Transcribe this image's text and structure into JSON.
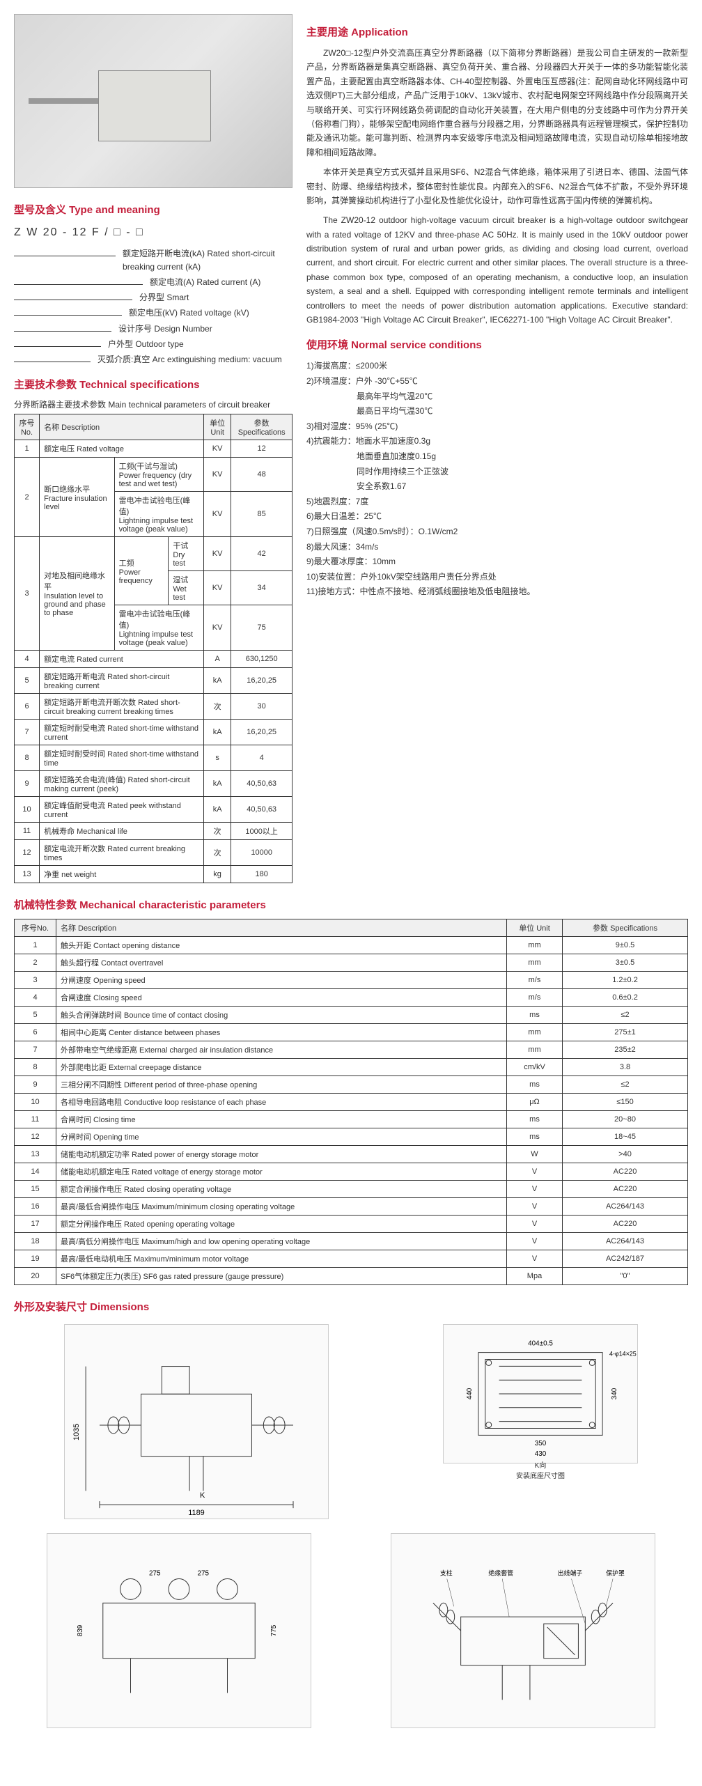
{
  "sections": {
    "type_meaning": "型号及含义 Type and meaning",
    "tech_specs": "主要技术参数  Technical specifications",
    "application": "主要用途  Application",
    "service_conditions": "使用环境  Normal service conditions",
    "mech_params": "机械特性参数  Mechanical characteristic parameters",
    "dimensions": "外形及安装尺寸 Dimensions"
  },
  "type_code": "Z W 20 - 12 F / □ - □",
  "type_lines": [
    "额定短路开断电流(kA) Rated short-circuit breaking current (kA)",
    "额定电流(A) Rated current (A)",
    "分界型 Smart",
    "额定电压(kV)  Rated voltage (kV)",
    "设计序号 Design Number",
    "户外型 Outdoor type",
    "灭弧介质:真空  Arc extinguishing medium: vacuum"
  ],
  "main_params_title": "分界断路器主要技术参数  Main technical parameters of circuit breaker",
  "table_headers": {
    "no": "序号No.",
    "desc": "名称 Description",
    "unit": "单位 Unit",
    "spec": "参数 Specifications"
  },
  "main_params": [
    {
      "no": "1",
      "desc": "额定电压 Rated voltage",
      "unit": "KV",
      "spec": "12"
    },
    {
      "no": "2",
      "desc": "断口绝缘水平\nFracture insulation level",
      "sub": [
        {
          "desc": "工频(干试与湿试)\nPower frequency (dry test and wet test)",
          "unit": "KV",
          "spec": "48"
        },
        {
          "desc": "雷电冲击试验电压(峰值)\nLightning impulse test voltage (peak value)",
          "unit": "KV",
          "spec": "85"
        }
      ]
    },
    {
      "no": "3",
      "desc": "对地及相间绝缘水平\nInsulation level to ground and phase to phase",
      "sub": [
        {
          "desc": "工频\nPower frequency",
          "sub2": [
            {
              "desc": "干试 Dry test",
              "unit": "KV",
              "spec": "42"
            },
            {
              "desc": "湿试 Wet test",
              "unit": "KV",
              "spec": "34"
            }
          ]
        },
        {
          "desc": "雷电冲击试验电压(峰值)\nLightning impulse test voltage (peak value)",
          "unit": "KV",
          "spec": "75"
        }
      ]
    },
    {
      "no": "4",
      "desc": "额定电流 Rated current",
      "unit": "A",
      "spec": "630,1250"
    },
    {
      "no": "5",
      "desc": "额定短路开断电流 Rated short-circuit breaking current",
      "unit": "kA",
      "spec": "16,20,25"
    },
    {
      "no": "6",
      "desc": "额定短路开断电流开断次数 Rated short-circuit breaking current breaking times",
      "unit": "次",
      "spec": "30"
    },
    {
      "no": "7",
      "desc": "额定短时耐受电流 Rated short-time withstand current",
      "unit": "kA",
      "spec": "16,20,25"
    },
    {
      "no": "8",
      "desc": "额定短时耐受时间 Rated short-time withstand time",
      "unit": "s",
      "spec": "4"
    },
    {
      "no": "9",
      "desc": "额定短路关合电流(峰值) Rated short-circuit making current (peek)",
      "unit": "kA",
      "spec": "40,50,63"
    },
    {
      "no": "10",
      "desc": "额定峰值耐受电流 Rated peek withstand current",
      "unit": "kA",
      "spec": "40,50,63"
    },
    {
      "no": "11",
      "desc": "机械寿命 Mechanical life",
      "unit": "次",
      "spec": "1000以上"
    },
    {
      "no": "12",
      "desc": "额定电流开断次数 Rated current breaking times",
      "unit": "次",
      "spec": "10000"
    },
    {
      "no": "13",
      "desc": "净重 net weight",
      "unit": "kg",
      "spec": "180"
    }
  ],
  "application_text": [
    "ZW20□-12型户外交流高压真空分界断路器（以下简称分界断路器）是我公司自主研发的一款新型产品，分界断路器是集真空断路器、真空负荷开关、重合器、分段器四大开关于一体的多功能智能化装置产品，主要配置由真空断路器本体、CH-40型控制器、外置电压互感器(注：配网自动化环网线路中可选双侧PT)三大部分组成，产品广泛用于10kV、13kV城市、农村配电网架空环网线路中作分段隔离开关与联络开关、可实行环网线路负荷调配的自动化开关装置，在大用户侧电的分支线路中可作为分界开关（俗称看门狗），能够架空配电网络作重合器与分段器之用，分界断路器具有远程管理模式，保护控制功能及通讯功能。能可靠判断、检测界内本安级零序电流及相间短路故障电流，实现自动切除单相接地故障和相间短路故障。",
    "本体开关是真空方式灭弧并且采用SF6、N2混合气体绝缘，箱体采用了引进日本、德国、法国气体密封、防爆、绝缘结构技术，整体密封性能优良。内部充入的SF6、N2混合气体不扩散，不受外界环境影响，其弹簧操动机构进行了小型化及性能优化设计，动作可靠性远高于国内传统的弹簧机构。",
    "The ZW20-12 outdoor high-voltage vacuum circuit breaker is a high-voltage outdoor switchgear with a rated voltage of 12KV and three-phase AC 50Hz. It is mainly used in the 10kV outdoor power distribution system of rural and urban power grids, as dividing and closing load current, overload current, and short circuit. For electric current and other similar places. The overall structure is a three-phase common box type, composed of an operating mechanism, a conductive loop, an insulation system, a seal and a shell. Equipped with corresponding intelligent remote terminals and intelligent controllers to meet the needs of power distribution automation applications. Executive standard: GB1984-2003 \"High Voltage AC Circuit Breaker\", IEC62271-100 \"High Voltage AC Circuit Breaker\"."
  ],
  "conditions": [
    "1)海拔高度：≤2000米",
    "2)环境温度：户外 -30℃+55℃",
    "　　　　　　最高年平均气温20℃",
    "　　　　　　最高日平均气温30℃",
    "3)相对湿度：95% (25℃)",
    "4)抗震能力：地面水平加速度0.3g",
    "　　　　　　地面垂直加速度0.15g",
    "　　　　　　同时作用持续三个正弦波",
    "　　　　　　安全系数1.67",
    "5)地震烈度：7度",
    "6)最大日温差：25℃",
    "7)日照强度（风速0.5m/s时）：O.1W/cm2",
    "8)最大风速：34m/s",
    "9)最大覆冰厚度：10mm",
    "10)安装位置：户外10kV架空线路用户责任分界点处",
    "11)接地方式：中性点不接地、经消弧线圈接地及低电阻接地。"
  ],
  "mech_params": [
    {
      "no": "1",
      "desc": "触头开距 Contact opening distance",
      "unit": "mm",
      "spec": "9±0.5"
    },
    {
      "no": "2",
      "desc": "触头超行程 Contact overtravel",
      "unit": "mm",
      "spec": "3±0.5"
    },
    {
      "no": "3",
      "desc": "分闸速度 Opening speed",
      "unit": "m/s",
      "spec": "1.2±0.2"
    },
    {
      "no": "4",
      "desc": "合闸速度 Closing speed",
      "unit": "m/s",
      "spec": "0.6±0.2"
    },
    {
      "no": "5",
      "desc": "触头合闸弹跳时间 Bounce time of contact closing",
      "unit": "ms",
      "spec": "≤2"
    },
    {
      "no": "6",
      "desc": "相间中心距离  Center distance between phases",
      "unit": "mm",
      "spec": "275±1"
    },
    {
      "no": "7",
      "desc": "外部带电空气绝缘距离 External charged air insulation distance",
      "unit": "mm",
      "spec": "235±2"
    },
    {
      "no": "8",
      "desc": "外部爬电比距 External creepage distance",
      "unit": "cm/kV",
      "spec": "3.8"
    },
    {
      "no": "9",
      "desc": "三相分闸不同期性 Different period of three-phase opening",
      "unit": "ms",
      "spec": "≤2"
    },
    {
      "no": "10",
      "desc": "各相导电回路电阻 Conductive loop resistance of each phase",
      "unit": "μΩ",
      "spec": "≤150"
    },
    {
      "no": "11",
      "desc": "合闸时间 Closing time",
      "unit": "ms",
      "spec": "20~80"
    },
    {
      "no": "12",
      "desc": "分闸时间 Opening time",
      "unit": "ms",
      "spec": "18~45"
    },
    {
      "no": "13",
      "desc": "储能电动机额定功率 Rated power of energy storage motor",
      "unit": "W",
      "spec": ">40"
    },
    {
      "no": "14",
      "desc": "储能电动机额定电压 Rated voltage of energy storage motor",
      "unit": "V",
      "spec": "AC220"
    },
    {
      "no": "15",
      "desc": "额定合闸操作电压  Rated closing operating voltage",
      "unit": "V",
      "spec": "AC220"
    },
    {
      "no": "16",
      "desc": "最高/最低合闸操作电压 Maximum/minimum closing operating voltage",
      "unit": "V",
      "spec": "AC264/143"
    },
    {
      "no": "17",
      "desc": "额定分闸操作电压 Rated opening operating voltage",
      "unit": "V",
      "spec": "AC220"
    },
    {
      "no": "18",
      "desc": "最高/高低分闸操作电压 Maximum/high and low opening operating voltage",
      "unit": "V",
      "spec": "AC264/143"
    },
    {
      "no": "19",
      "desc": "最高/最低电动机电压 Maximum/minimum motor voltage",
      "unit": "V",
      "spec": "AC242/187"
    },
    {
      "no": "20",
      "desc": "SF6气体额定压力(表压) SF6 gas rated pressure (gauge pressure)",
      "unit": "Mpa",
      "spec": "\"0\""
    }
  ],
  "dim_labels": {
    "d1_w": "1189",
    "d1_h": "1035",
    "d1_k": "K",
    "d2_w": "404±0.5",
    "d2_w2": "350",
    "d2_w3": "430",
    "d2_h": "440",
    "d2_h2": "340",
    "d2_holes": "4-φ14×25",
    "d2_title": "K向\n安装底座尺寸图",
    "d3_h": "839",
    "d3_h2": "275",
    "d3_h3": "275",
    "d3_h4": "775",
    "d4_labels": "支柱 绝缘套管 出线端子 保护罩"
  },
  "colors": {
    "title": "#c41e3a",
    "border": "#333333",
    "bg": "#ffffff"
  }
}
